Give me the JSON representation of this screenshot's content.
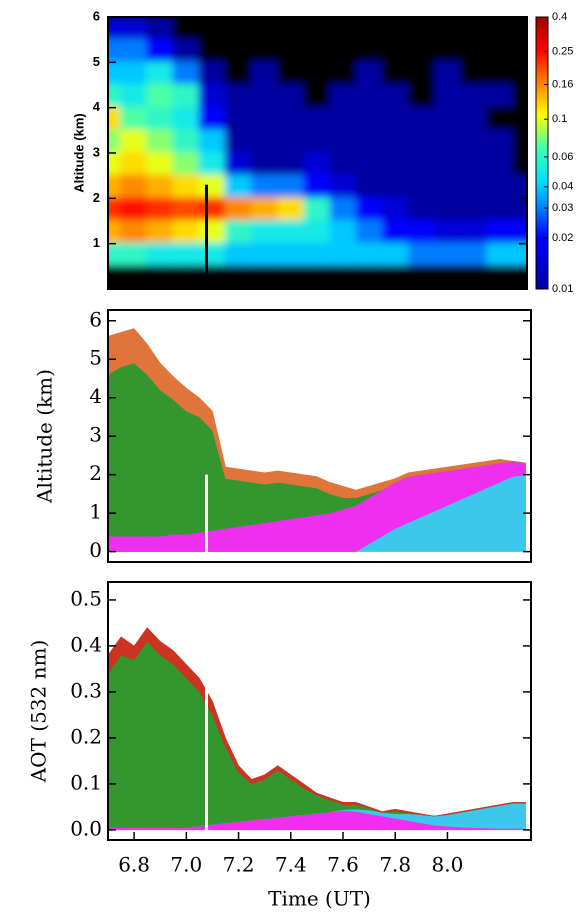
{
  "chart_data": [
    {
      "type": "heatmap",
      "ylabel": "Altitude (km)",
      "colormap": "jet",
      "log_color": true,
      "xlim": [
        6.7,
        8.3
      ],
      "ylim": [
        0,
        6
      ],
      "yticks": [
        1,
        2,
        3,
        4,
        5,
        6
      ],
      "clim": [
        0.01,
        0.4
      ],
      "cticks": [
        0.01,
        0.02,
        0.03,
        0.04,
        0.06,
        0.1,
        0.16,
        0.25,
        0.4
      ],
      "x": [
        6.7,
        6.8,
        6.9,
        7.0,
        7.1,
        7.2,
        7.3,
        7.4,
        7.5,
        7.6,
        7.7,
        7.8,
        7.9,
        8.0,
        8.1,
        8.2,
        8.3
      ],
      "y": [
        5.75,
        5.25,
        4.75,
        4.25,
        3.75,
        3.25,
        2.75,
        2.25,
        1.75,
        1.25,
        0.75,
        0.25
      ],
      "z": [
        [
          0.015,
          0.015,
          0.01,
          0.005,
          0.005,
          0.005,
          0.005,
          0.005,
          0.005,
          0.005,
          0.005,
          0.005,
          0.005,
          0.005,
          0.005,
          0.005,
          0.005
        ],
        [
          0.03,
          0.03,
          0.02,
          0.01,
          0.005,
          0.005,
          0.005,
          0.005,
          0.005,
          0.005,
          0.005,
          0.005,
          0.005,
          0.005,
          0.005,
          0.005,
          0.005
        ],
        [
          0.04,
          0.04,
          0.05,
          0.03,
          0.01,
          0.005,
          0.01,
          0.005,
          0.005,
          0.005,
          0.01,
          0.005,
          0.005,
          0.01,
          0.005,
          0.005,
          0.005
        ],
        [
          0.06,
          0.05,
          0.07,
          0.06,
          0.015,
          0.01,
          0.01,
          0.01,
          0.005,
          0.01,
          0.01,
          0.01,
          0.005,
          0.01,
          0.01,
          0.01,
          0.005
        ],
        [
          0.12,
          0.07,
          0.06,
          0.05,
          0.02,
          0.01,
          0.01,
          0.01,
          0.01,
          0.01,
          0.01,
          0.01,
          0.01,
          0.01,
          0.01,
          0.005,
          0.005
        ],
        [
          0.08,
          0.1,
          0.08,
          0.06,
          0.04,
          0.01,
          0.01,
          0.01,
          0.01,
          0.01,
          0.01,
          0.01,
          0.01,
          0.01,
          0.01,
          0.01,
          0.005
        ],
        [
          0.1,
          0.12,
          0.1,
          0.08,
          0.05,
          0.015,
          0.01,
          0.01,
          0.015,
          0.01,
          0.01,
          0.01,
          0.01,
          0.01,
          0.01,
          0.01,
          0.005
        ],
        [
          0.14,
          0.16,
          0.14,
          0.12,
          0.1,
          0.04,
          0.03,
          0.03,
          0.02,
          0.015,
          0.01,
          0.01,
          0.01,
          0.01,
          0.01,
          0.01,
          0.01
        ],
        [
          0.22,
          0.25,
          0.22,
          0.2,
          0.22,
          0.16,
          0.14,
          0.12,
          0.06,
          0.03,
          0.02,
          0.015,
          0.01,
          0.01,
          0.01,
          0.01,
          0.01
        ],
        [
          0.14,
          0.16,
          0.14,
          0.12,
          0.1,
          0.06,
          0.05,
          0.05,
          0.05,
          0.04,
          0.03,
          0.02,
          0.02,
          0.015,
          0.015,
          0.02,
          0.02
        ],
        [
          0.06,
          0.06,
          0.05,
          0.05,
          0.05,
          0.04,
          0.04,
          0.04,
          0.04,
          0.04,
          0.04,
          0.04,
          0.03,
          0.03,
          0.03,
          0.04,
          0.04
        ],
        [
          0.005,
          0.005,
          0.005,
          0.005,
          0.005,
          0.005,
          0.005,
          0.005,
          0.005,
          0.005,
          0.005,
          0.005,
          0.005,
          0.005,
          0.005,
          0.005,
          0.005
        ]
      ]
    },
    {
      "type": "stacked_area",
      "ylabel": "Altitude (km)",
      "xlim": [
        6.7,
        8.32
      ],
      "ylim": [
        -0.27,
        6.28
      ],
      "yticks": [
        0,
        1,
        2,
        3,
        4,
        5,
        6
      ],
      "x": [
        6.7,
        6.75,
        6.8,
        6.85,
        6.9,
        6.95,
        7.0,
        7.05,
        7.1,
        7.15,
        7.2,
        7.25,
        7.3,
        7.35,
        7.4,
        7.45,
        7.5,
        7.55,
        7.6,
        7.65,
        7.7,
        7.75,
        7.8,
        7.85,
        7.9,
        7.95,
        8.0,
        8.05,
        8.1,
        8.15,
        8.2,
        8.25,
        8.3
      ],
      "series": [
        {
          "color": "#3cc8ec",
          "values": [
            0,
            0,
            0,
            0,
            0,
            0,
            0,
            0,
            0,
            0,
            0,
            0,
            0,
            0,
            0,
            0,
            0,
            0,
            0,
            0,
            0.2,
            0.4,
            0.6,
            0.75,
            0.9,
            1.05,
            1.2,
            1.35,
            1.5,
            1.65,
            1.8,
            1.95,
            2.0
          ]
        },
        {
          "color": "#ee30ee",
          "values": [
            0.4,
            0.4,
            0.4,
            0.4,
            0.4,
            0.45,
            0.45,
            0.5,
            0.55,
            0.6,
            0.65,
            0.7,
            0.75,
            0.8,
            0.85,
            0.9,
            0.95,
            1.0,
            1.1,
            1.2,
            1.2,
            1.2,
            1.2,
            1.2,
            1.1,
            1.0,
            0.9,
            0.8,
            0.7,
            0.6,
            0.5,
            0.4,
            0.3
          ]
        },
        {
          "color": "#33962e",
          "values": [
            4.2,
            4.4,
            4.5,
            4.2,
            3.8,
            3.5,
            3.2,
            3.0,
            2.6,
            1.3,
            1.2,
            1.1,
            1.0,
            1.0,
            0.9,
            0.8,
            0.7,
            0.5,
            0.3,
            0.2,
            0.1,
            0,
            0,
            0,
            0,
            0,
            0,
            0,
            0,
            0,
            0,
            0,
            0
          ]
        },
        {
          "color": "#e0743a",
          "values": [
            1.0,
            0.9,
            0.9,
            0.8,
            0.7,
            0.6,
            0.6,
            0.5,
            0.5,
            0.3,
            0.3,
            0.3,
            0.3,
            0.3,
            0.3,
            0.3,
            0.3,
            0.3,
            0.3,
            0.2,
            0.2,
            0.2,
            0.1,
            0.1,
            0.1,
            0.1,
            0.1,
            0.1,
            0.1,
            0.1,
            0.1,
            0,
            0
          ]
        }
      ]
    },
    {
      "type": "stacked_area",
      "ylabel": "AOT (532 nm)",
      "xlabel": "Time (UT)",
      "xlim": [
        6.7,
        8.32
      ],
      "ylim": [
        -0.022,
        0.539
      ],
      "xticks": [
        6.8,
        {
          "value": 7,
          "label": "7.0"
        },
        7.2,
        7.4,
        7.6,
        7.8,
        {
          "value": 8,
          "label": "8.0"
        }
      ],
      "yticks": [
        {
          "value": 0,
          "label": "0.0"
        },
        0.1,
        0.2,
        0.3,
        0.4,
        0.5
      ],
      "x": [
        6.7,
        6.75,
        6.8,
        6.85,
        6.9,
        6.95,
        7.0,
        7.05,
        7.1,
        7.15,
        7.2,
        7.25,
        7.3,
        7.35,
        7.4,
        7.45,
        7.5,
        7.55,
        7.6,
        7.65,
        7.7,
        7.75,
        7.8,
        7.85,
        7.9,
        7.95,
        8.0,
        8.05,
        8.1,
        8.15,
        8.2,
        8.25,
        8.3
      ],
      "series": [
        {
          "color": "#ee30ee",
          "values": [
            0.005,
            0.005,
            0.005,
            0.005,
            0.005,
            0.005,
            0.005,
            0.008,
            0.012,
            0.015,
            0.018,
            0.021,
            0.024,
            0.027,
            0.03,
            0.033,
            0.036,
            0.039,
            0.042,
            0.04,
            0.035,
            0.03,
            0.025,
            0.02,
            0.015,
            0.01,
            0.008,
            0.006,
            0.005,
            0.004,
            0.003,
            0.003,
            0.003
          ]
        },
        {
          "color": "#3cc8ec",
          "values": [
            0,
            0,
            0,
            0,
            0,
            0,
            0,
            0,
            0,
            0,
            0,
            0,
            0,
            0,
            0,
            0,
            0,
            0,
            0.002,
            0.005,
            0.008,
            0.008,
            0.01,
            0.015,
            0.018,
            0.02,
            0.025,
            0.032,
            0.038,
            0.044,
            0.05,
            0.055,
            0.055
          ]
        },
        {
          "color": "#33962e",
          "values": [
            0.335,
            0.375,
            0.365,
            0.405,
            0.375,
            0.355,
            0.325,
            0.292,
            0.238,
            0.165,
            0.107,
            0.079,
            0.086,
            0.103,
            0.08,
            0.057,
            0.039,
            0.026,
            0.011,
            0.01,
            0.004,
            0,
            0.005,
            0.002,
            0,
            0,
            0,
            0,
            0,
            0,
            0,
            0,
            0
          ]
        },
        {
          "color": "#cc3322",
          "values": [
            0.04,
            0.04,
            0.03,
            0.03,
            0.03,
            0.03,
            0.03,
            0.03,
            0.03,
            0.02,
            0.015,
            0.01,
            0.01,
            0.01,
            0.01,
            0.01,
            0.005,
            0.005,
            0.005,
            0.005,
            0.003,
            0.002,
            0.005,
            0.003,
            0.002,
            0,
            0.002,
            0.002,
            0.002,
            0.002,
            0.002,
            0.002,
            0.002
          ]
        }
      ]
    }
  ]
}
